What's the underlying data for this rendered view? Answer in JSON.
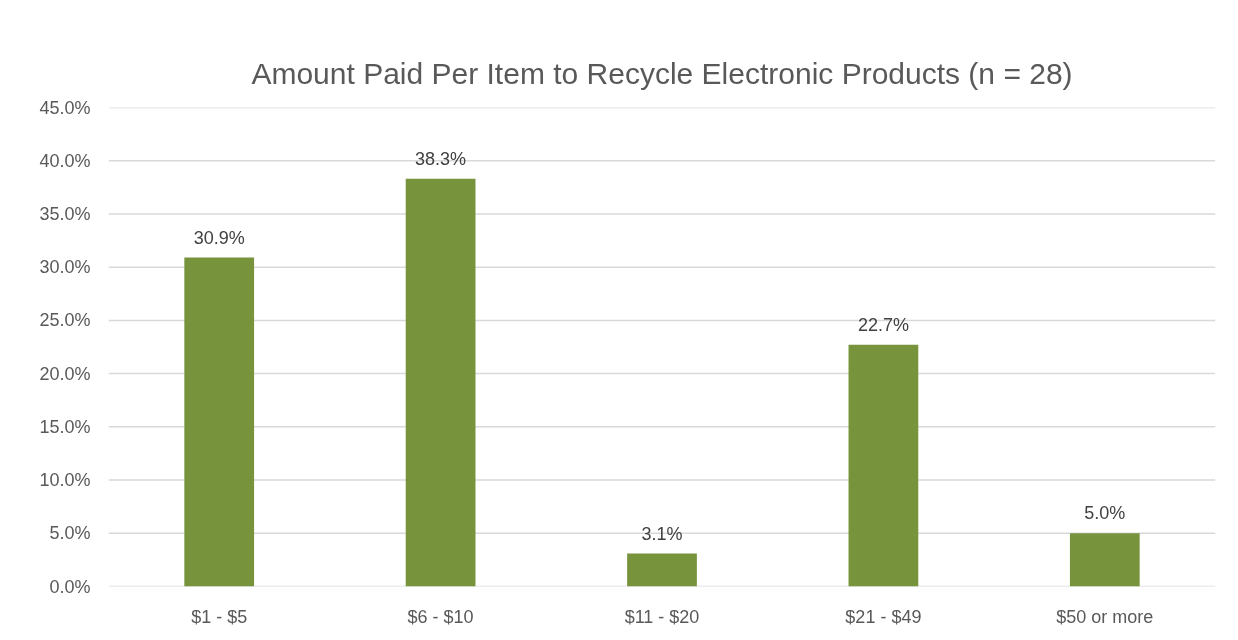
{
  "chart_data": {
    "type": "bar",
    "title": "Amount Paid Per Item to Recycle Electronic Products (n = 28)",
    "categories": [
      "$1 - $5",
      "$6 - $10",
      "$11 - $20",
      "$21 - $49",
      "$50 or more"
    ],
    "values": [
      30.9,
      38.3,
      3.1,
      22.7,
      5.0
    ],
    "color": "#77933c",
    "value_labels": [
      "30.9%",
      "38.3%",
      "3.1%",
      "22.7%",
      "5.0%"
    ],
    "ylim": [
      0,
      45
    ],
    "yticks": [
      {
        "value": 0,
        "label": "0.0%"
      },
      {
        "value": 5,
        "label": "5.0%"
      },
      {
        "value": 10,
        "label": "10.0%"
      },
      {
        "value": 15,
        "label": "15.0%"
      },
      {
        "value": 20,
        "label": "20.0%"
      },
      {
        "value": 25,
        "label": "25.0%"
      },
      {
        "value": 30,
        "label": "30.0%"
      },
      {
        "value": 35,
        "label": "35.0%"
      },
      {
        "value": 40,
        "label": "40.0%"
      },
      {
        "value": 45,
        "label": "45.0%"
      }
    ],
    "grid": "y"
  }
}
